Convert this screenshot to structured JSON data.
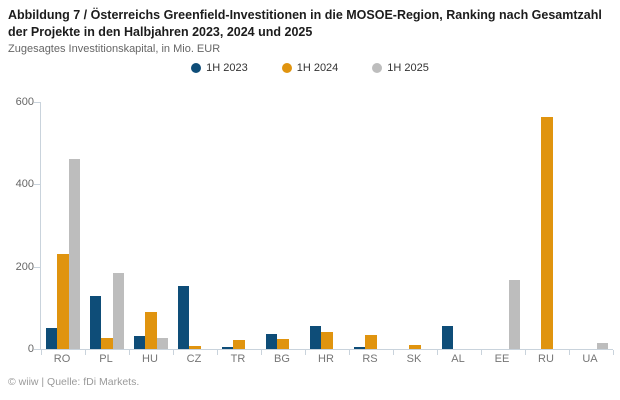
{
  "header": {
    "title": "Abbildung 7 / Österreichs Greenfield-Investitionen in die MOSOE-Region, Ranking nach Gesamtzahl der Projekte in den Halbjahren 2023, 2024 und 2025",
    "subtitle": "Zugesagtes Investitionskapital, in Mio. EUR"
  },
  "footer": {
    "source": "© wiiw | Quelle: fDi Markets."
  },
  "colors": {
    "series_2023": "#0e4d78",
    "series_2024": "#e0940f",
    "series_2025": "#bdbdbd",
    "axis": "#c9d3dc",
    "tick_label": "#666666",
    "x_label": "#757575"
  },
  "chart_data": {
    "type": "bar",
    "title": "Abbildung 7 / Österreichs Greenfield-Investitionen in die MOSOE-Region, Ranking nach Gesamtzahl der Projekte in den Halbjahren 2023, 2024 und 2025",
    "subtitle": "Zugesagtes Investitionskapital, in Mio. EUR",
    "unit": "Mio. EUR",
    "categories": [
      "RO",
      "PL",
      "HU",
      "CZ",
      "TR",
      "BG",
      "HR",
      "RS",
      "SK",
      "AL",
      "EE",
      "RU",
      "UA"
    ],
    "series": [
      {
        "name": "1H 2023",
        "color": "#0e4d78",
        "values": [
          50,
          130,
          31,
          154,
          4,
          36,
          57,
          4,
          0,
          55,
          0,
          0,
          0
        ]
      },
      {
        "name": "1H 2024",
        "color": "#e0940f",
        "values": [
          232,
          26,
          91,
          8,
          21,
          25,
          41,
          34,
          10,
          0,
          0,
          563,
          0
        ]
      },
      {
        "name": "1H 2025",
        "color": "#bdbdbd",
        "values": [
          462,
          185,
          27,
          0,
          0,
          0,
          0,
          0,
          0,
          0,
          168,
          0,
          15
        ]
      }
    ],
    "xlabel": "",
    "ylabel": "",
    "ylim": [
      0,
      600
    ],
    "yticks": [
      0,
      200,
      400,
      600
    ],
    "grid": false,
    "legend_position": "top-center"
  }
}
